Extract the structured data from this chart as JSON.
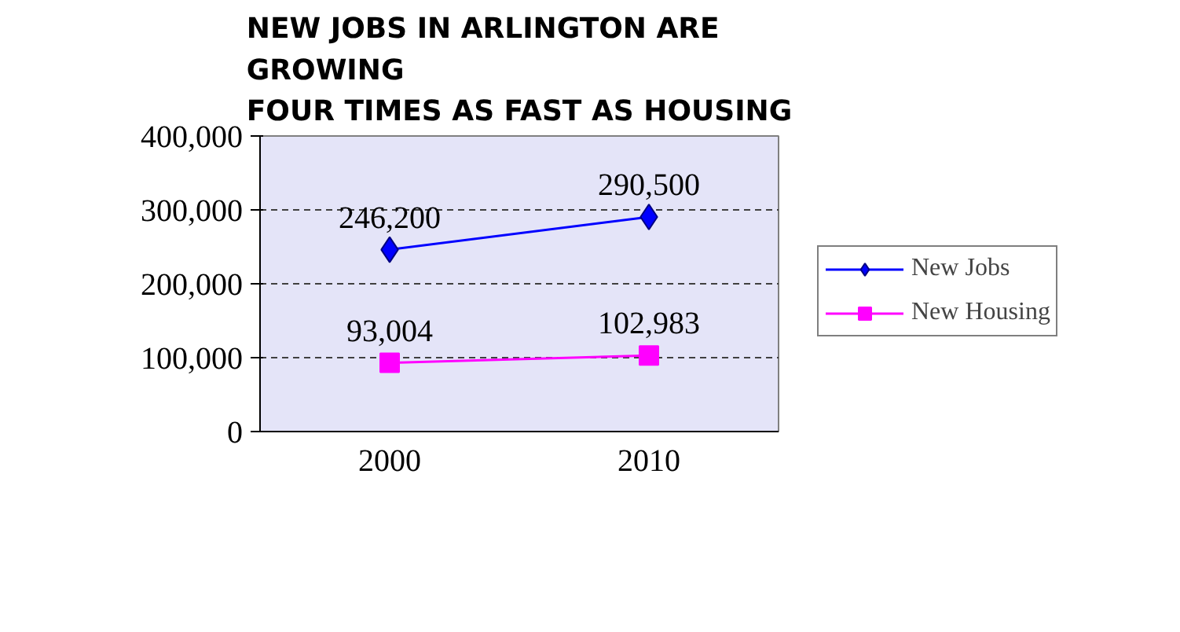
{
  "chart_data": {
    "type": "line",
    "title": "NEW JOBS IN ARLINGTON ARE\nGROWING\nFOUR TIMES AS FAST AS HOUSING",
    "categories": [
      "2000",
      "2010"
    ],
    "series": [
      {
        "name": "New Jobs",
        "color": "#0000ff",
        "values": [
          246200,
          290500
        ],
        "value_labels": [
          "246,200",
          "290,500"
        ],
        "marker": "diamond"
      },
      {
        "name": "New Housing",
        "color": "#ff00ff",
        "values": [
          93004,
          102983
        ],
        "value_labels": [
          "93,004",
          "102,983"
        ],
        "marker": "square"
      }
    ],
    "ylim": [
      0,
      400000
    ],
    "yticks": [
      {
        "value": 0,
        "label": "0"
      },
      {
        "value": 100000,
        "label": "100,000"
      },
      {
        "value": 200000,
        "label": "200,000"
      },
      {
        "value": 300000,
        "label": "300,000"
      },
      {
        "value": 400000,
        "label": "400,000"
      }
    ],
    "grid": "y",
    "legend": "right"
  }
}
